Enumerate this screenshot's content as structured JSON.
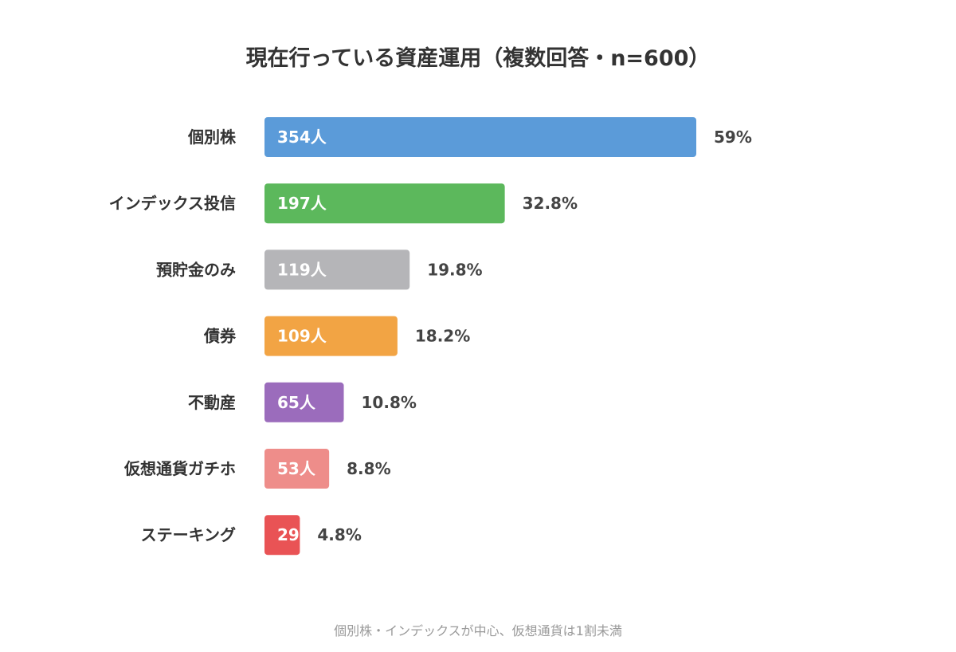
{
  "chart_data": {
    "type": "bar",
    "orientation": "horizontal",
    "title": "現在行っている資産運用（複数回答・n=600）",
    "categories": [
      "個別株",
      "インデックス投信",
      "預貯金のみ",
      "債券",
      "不動産",
      "仮想通貨ガチホ",
      "ステーキング"
    ],
    "values": [
      354,
      197,
      119,
      109,
      65,
      53,
      29
    ],
    "value_labels": [
      "354人",
      "197人",
      "119人",
      "109人",
      "65人",
      "53人",
      "29"
    ],
    "percent_labels": [
      "59%",
      "32.8%",
      "19.8%",
      "18.2%",
      "10.8%",
      "8.8%",
      "4.8%"
    ],
    "colors": [
      "#5b9bd9",
      "#5cb85c",
      "#b5b5b8",
      "#f2a444",
      "#9b6cbc",
      "#ee8d8a",
      "#e95355"
    ],
    "xlim": [
      0,
      600
    ],
    "grid": false,
    "note": "個別株・インデックスが中心、仮想通貨は1割未満"
  }
}
